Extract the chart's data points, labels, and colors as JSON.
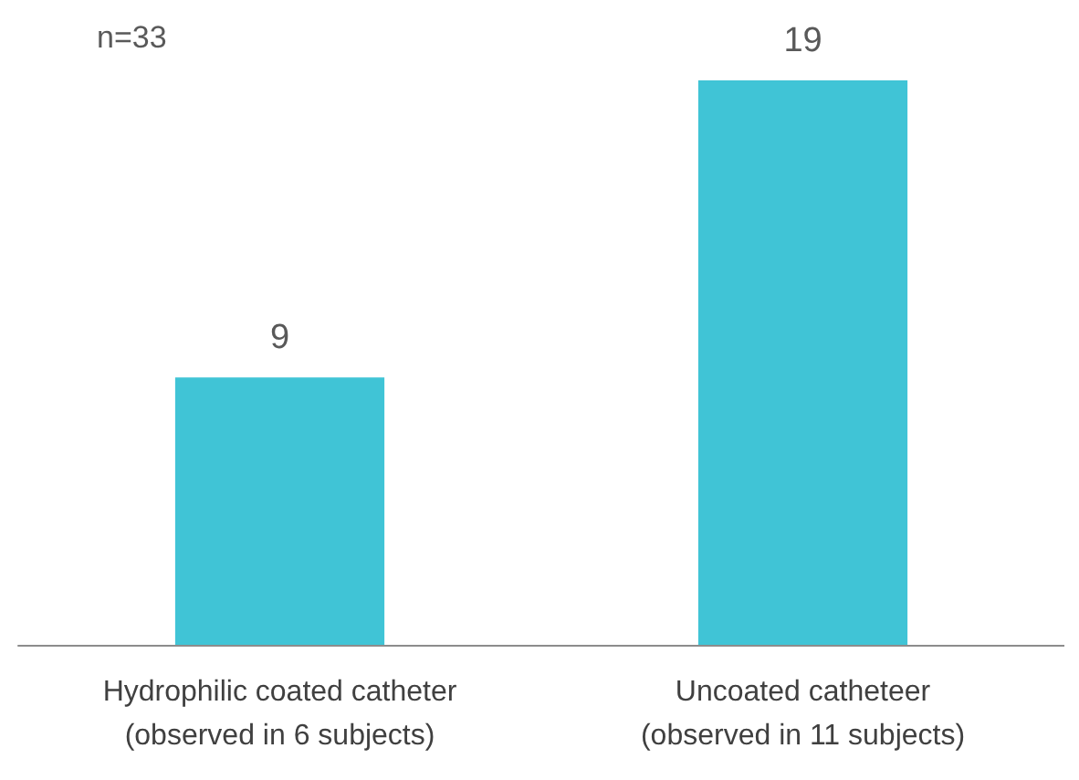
{
  "chart_data": {
    "type": "bar",
    "categories": [
      "Hydrophilic coated catheter\n(observed in 6 subjects)",
      "Uncoated catheteer\n(observed in 11 subjects)"
    ],
    "values": [
      9,
      19
    ],
    "color": "#40c4d6",
    "data_labels": true,
    "annotations": [
      "n=33"
    ]
  }
}
